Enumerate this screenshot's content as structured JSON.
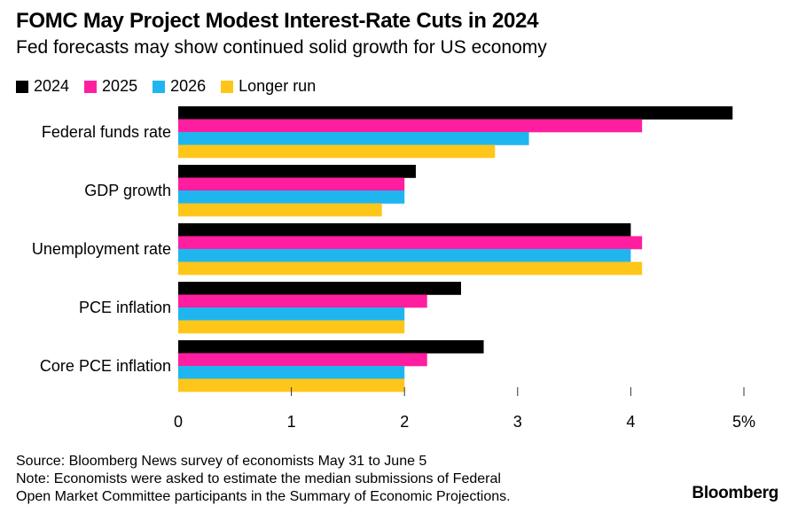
{
  "header": {
    "title": "FOMC May Project Modest Interest-Rate Cuts in 2024",
    "subtitle": "Fed forecasts may show continued solid growth for US economy"
  },
  "footer": {
    "source": "Source: Bloomberg News survey of economists May 31 to June 5",
    "note_line1": "Note: Economists were asked to estimate the median submissions of Federal",
    "note_line2": "Open Market Committee participants in the Summary of Economic Projections.",
    "brand": "Bloomberg"
  },
  "chart_data": {
    "type": "bar",
    "orientation": "horizontal",
    "title": "FOMC May Project Modest Interest-Rate Cuts in 2024",
    "subtitle": "Fed forecasts may show continued solid growth for US economy",
    "categories": [
      "Federal funds rate",
      "GDP growth",
      "Unemployment rate",
      "PCE inflation",
      "Core PCE inflation"
    ],
    "series": [
      {
        "name": "2024",
        "color": "#000000",
        "values": [
          4.9,
          2.1,
          4.0,
          2.5,
          2.7
        ]
      },
      {
        "name": "2025",
        "color": "#ff1ea0",
        "values": [
          4.1,
          2.0,
          4.1,
          2.2,
          2.2
        ]
      },
      {
        "name": "2026",
        "color": "#1fb6f0",
        "values": [
          3.1,
          2.0,
          4.0,
          2.0,
          2.0
        ]
      },
      {
        "name": "Longer run",
        "color": "#ffc61a",
        "values": [
          2.8,
          1.8,
          4.1,
          2.0,
          2.0
        ]
      }
    ],
    "xlim": [
      0,
      5
    ],
    "xticks": [
      {
        "value": 0,
        "label": "0"
      },
      {
        "value": 1,
        "label": "1"
      },
      {
        "value": 2,
        "label": "2"
      },
      {
        "value": 3,
        "label": "3"
      },
      {
        "value": 4,
        "label": "4"
      },
      {
        "value": 5,
        "label": "5%"
      }
    ],
    "legend_position": "top-left",
    "grid": false
  }
}
